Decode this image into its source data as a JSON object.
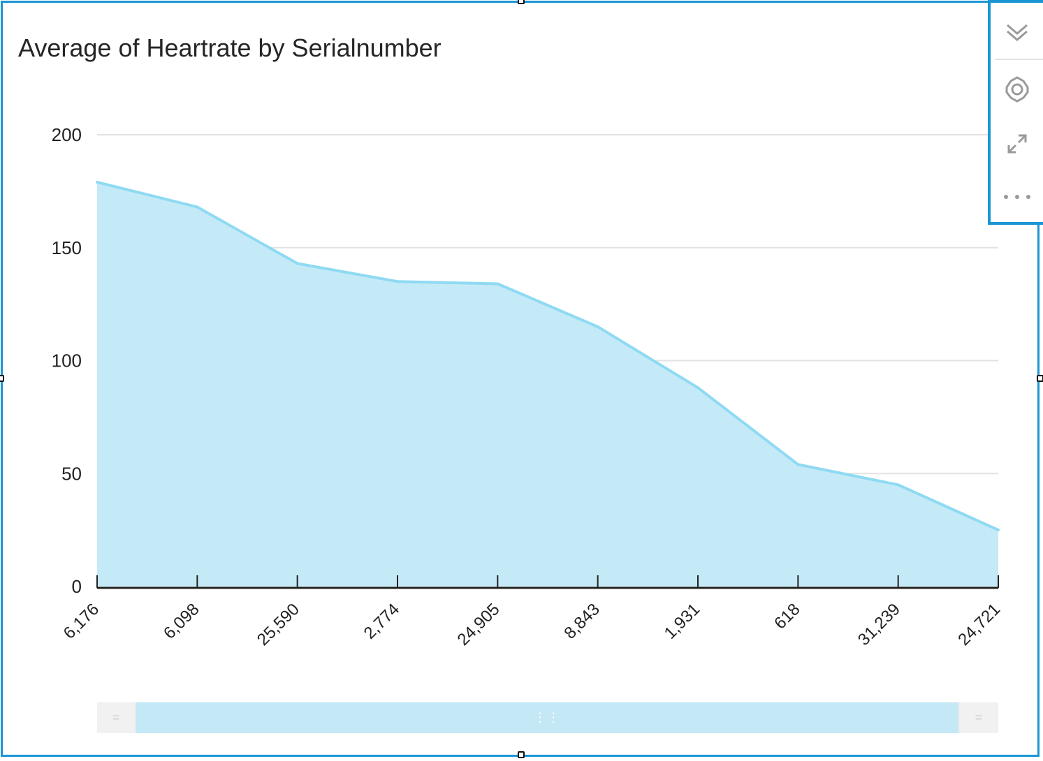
{
  "visual": {
    "title": "Average of Heartrate by Serialnumber",
    "toolbar": {
      "icons": [
        "chevrons-down-icon",
        "gear-icon",
        "expand-icon",
        "more-icon"
      ]
    }
  },
  "colors": {
    "accent": "#1a96d4",
    "area_fill": "#c5eaf7",
    "line": "#8fdaf3",
    "gridline": "#e2e2e2",
    "axis": "#222222"
  },
  "chart_data": {
    "type": "area",
    "title": "Average of Heartrate by Serialnumber",
    "xlabel": "",
    "ylabel": "",
    "categories": [
      "6,176",
      "6,098",
      "25,590",
      "2,774",
      "24,905",
      "8,843",
      "1,931",
      "618",
      "31,239",
      "24,721"
    ],
    "values": [
      179,
      168,
      143,
      135,
      134,
      115,
      88,
      54,
      45,
      25
    ],
    "ylim": [
      0,
      200
    ],
    "yticks": [
      "0",
      "50",
      "100",
      "150",
      "200"
    ],
    "grid": true,
    "legend": "none"
  }
}
